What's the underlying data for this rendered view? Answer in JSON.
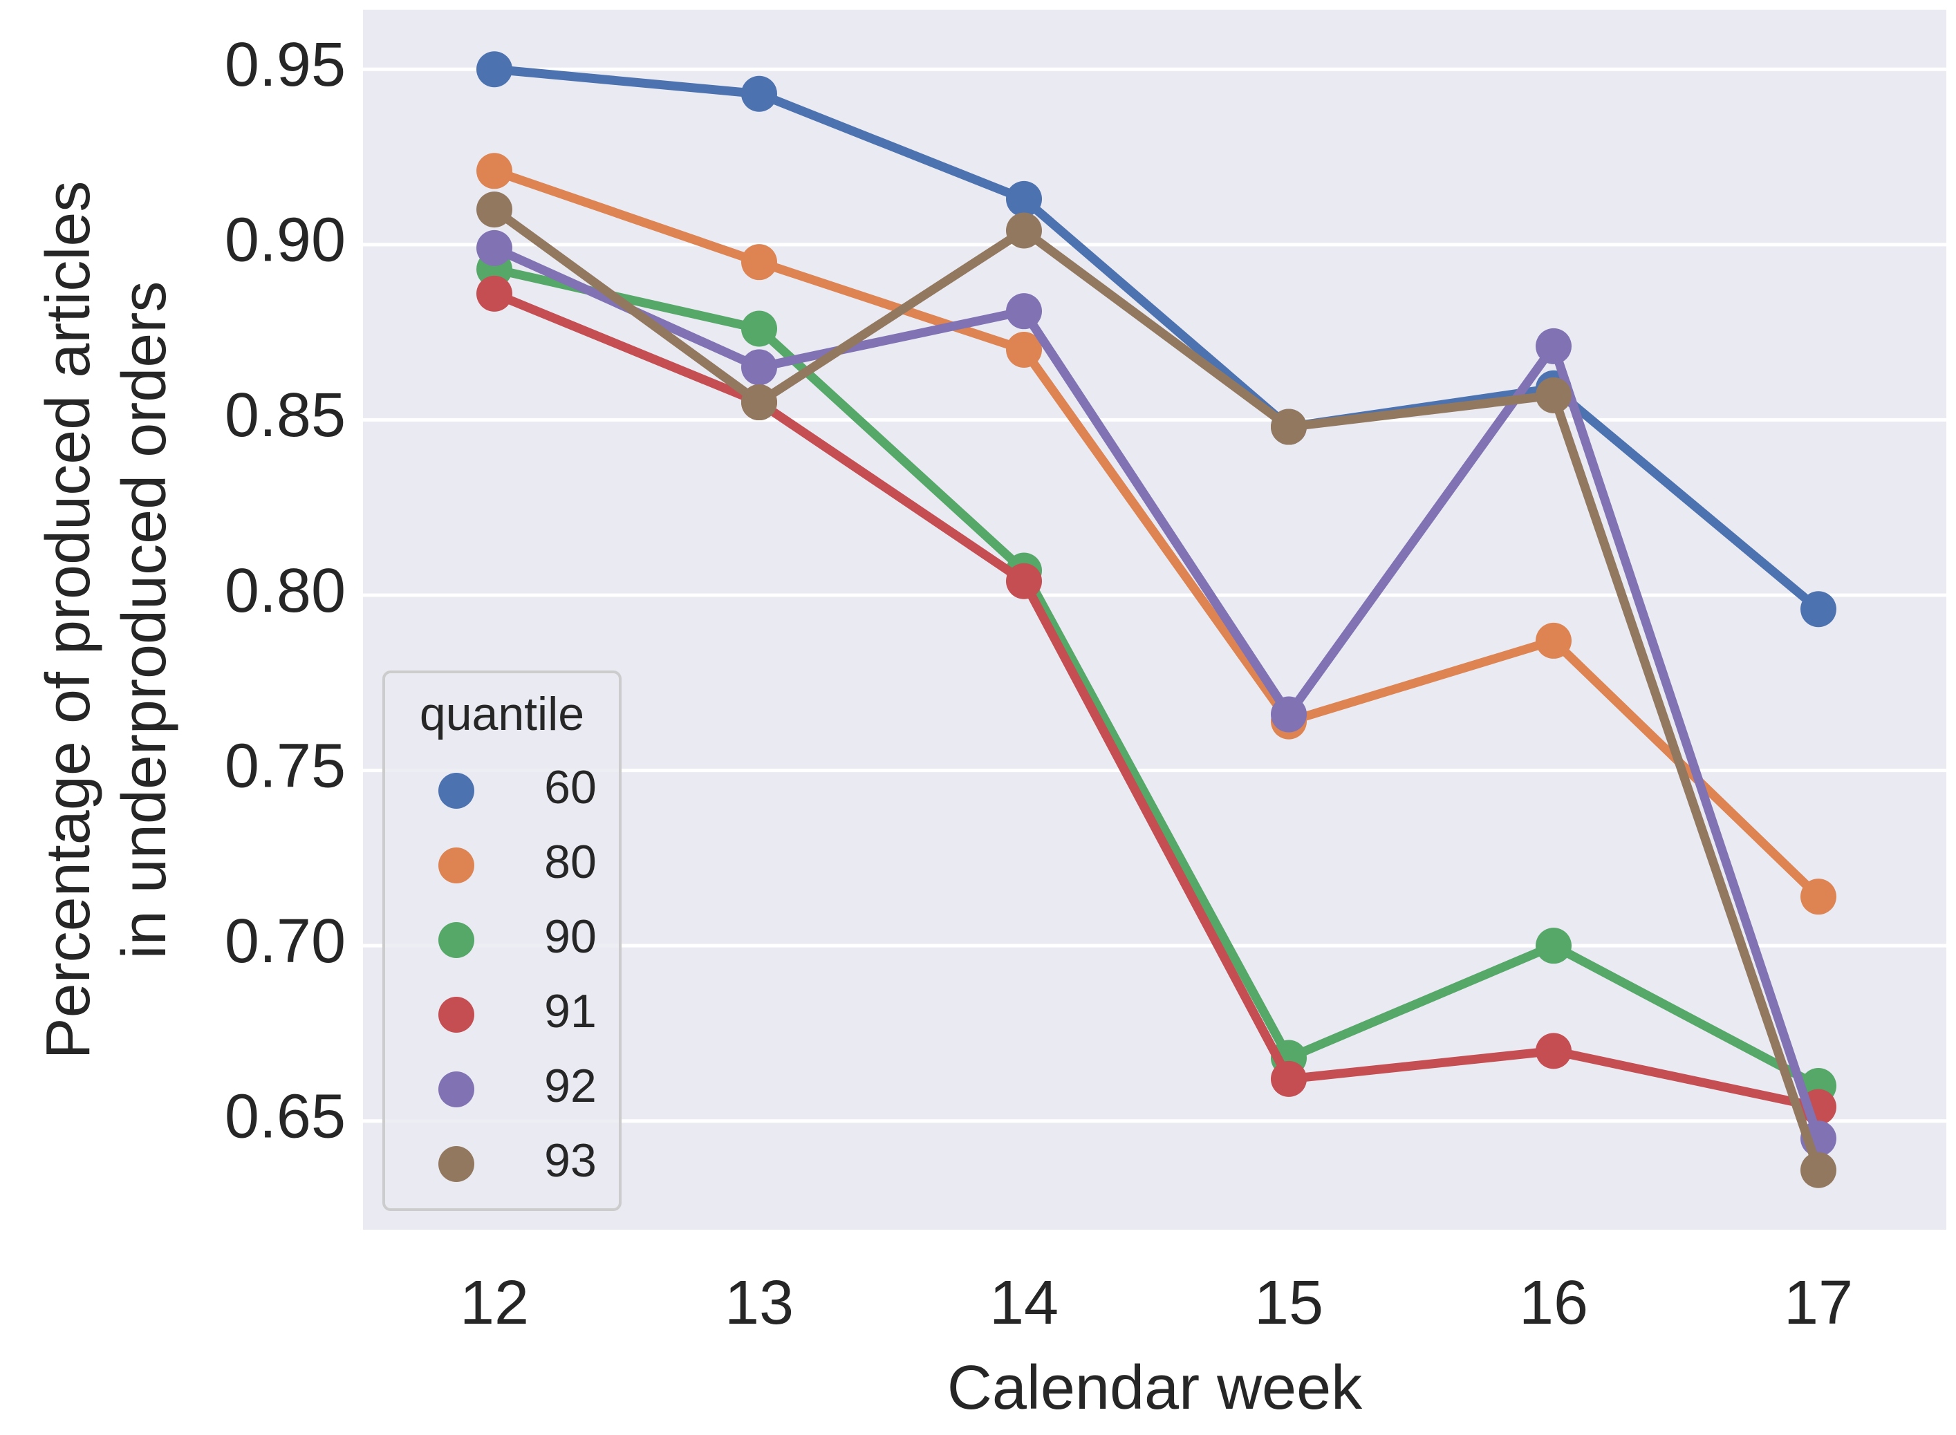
{
  "chart_data": {
    "type": "line",
    "title": "",
    "xlabel": "Calendar week",
    "ylabel_lines": [
      "Percentage of produced articles",
      "in underproduced orders"
    ],
    "categories": [
      "12",
      "13",
      "14",
      "15",
      "16",
      "17"
    ],
    "yticks": [
      "0.65",
      "0.70",
      "0.75",
      "0.80",
      "0.85",
      "0.90",
      "0.95"
    ],
    "ylim": [
      0.619,
      0.967
    ],
    "grid": true,
    "legend": {
      "title": "quantile",
      "placement": "lower-left"
    },
    "series": [
      {
        "name": "60",
        "color": "#4c72b0",
        "values": [
          0.95,
          0.943,
          0.913,
          0.848,
          0.859,
          0.796
        ]
      },
      {
        "name": "80",
        "color": "#dd8452",
        "values": [
          0.921,
          0.895,
          0.87,
          0.764,
          0.787,
          0.714
        ]
      },
      {
        "name": "90",
        "color": "#55a868",
        "values": [
          0.893,
          0.876,
          0.807,
          0.668,
          0.7,
          0.66
        ]
      },
      {
        "name": "91",
        "color": "#c44e52",
        "values": [
          0.886,
          0.855,
          0.804,
          0.662,
          0.67,
          0.654
        ]
      },
      {
        "name": "92",
        "color": "#8172b3",
        "values": [
          0.899,
          0.865,
          0.881,
          0.766,
          0.871,
          0.645
        ]
      },
      {
        "name": "93",
        "color": "#937860",
        "values": [
          0.91,
          0.855,
          0.904,
          0.848,
          0.857,
          0.636
        ]
      }
    ]
  }
}
